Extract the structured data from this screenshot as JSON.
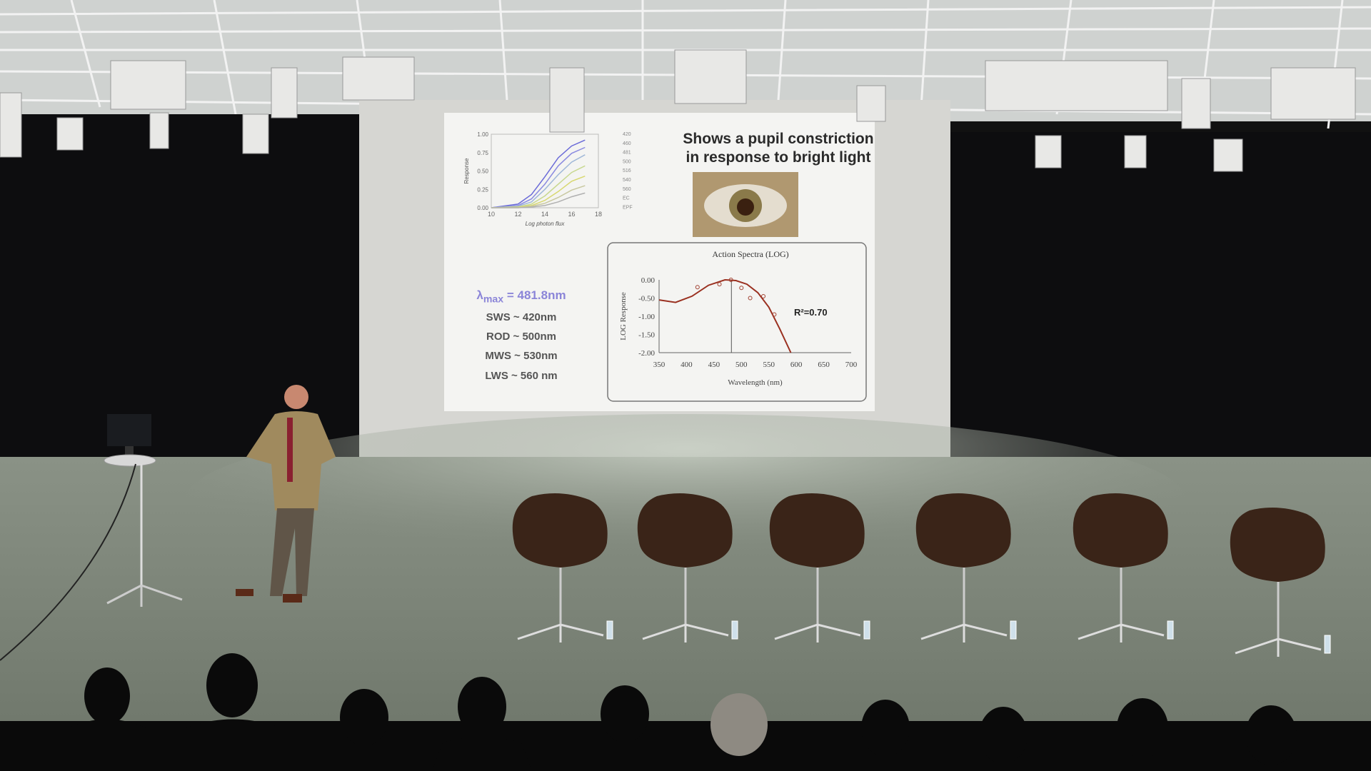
{
  "slide": {
    "title_line1": "Shows a pupil constriction",
    "title_line2": "in response to bright light",
    "lambda_symbol": "λ",
    "lambda_sub": "max",
    "lambda_value": " = 481.8nm",
    "receptors": [
      "SWS ~ 420nm",
      "ROD ~ 500nm",
      "MWS ~ 530nm",
      "LWS ~ 560 nm"
    ],
    "r_squared": "R²=0.70"
  },
  "chart_data": [
    {
      "type": "line",
      "xlabel": "Log photon flux",
      "ylabel": "Response",
      "x_ticks": [
        "10",
        "12",
        "14",
        "16",
        "18"
      ],
      "y_ticks": [
        "0.00",
        "0.25",
        "0.50",
        "0.75",
        "1.00"
      ],
      "xlim": [
        10,
        18
      ],
      "ylim": [
        0,
        1
      ],
      "legend_placement": "right",
      "legend": [
        "420",
        "460",
        "481",
        "500",
        "516",
        "540",
        "560",
        "EC",
        "EPF"
      ],
      "series": [
        {
          "name": "420",
          "color": "#6a6ad8",
          "x": [
            10,
            12,
            13,
            14,
            15,
            16,
            17
          ],
          "values": [
            0.0,
            0.05,
            0.18,
            0.42,
            0.68,
            0.84,
            0.92
          ]
        },
        {
          "name": "460",
          "color": "#8a8ae0",
          "x": [
            10,
            12,
            13,
            14,
            15,
            16,
            17
          ],
          "values": [
            0.0,
            0.03,
            0.12,
            0.32,
            0.57,
            0.74,
            0.82
          ]
        },
        {
          "name": "481",
          "color": "#a0b8d8",
          "x": [
            10,
            12,
            13,
            14,
            15,
            16,
            17
          ],
          "values": [
            0.0,
            0.02,
            0.08,
            0.25,
            0.45,
            0.62,
            0.72
          ]
        },
        {
          "name": "500",
          "color": "#c8d890",
          "x": [
            10,
            12,
            13,
            14,
            15,
            16,
            17
          ],
          "values": [
            0.0,
            0.01,
            0.05,
            0.16,
            0.32,
            0.48,
            0.57
          ]
        },
        {
          "name": "516",
          "color": "#d8d870",
          "x": [
            10,
            12,
            13,
            14,
            15,
            16,
            17
          ],
          "values": [
            0.0,
            0.01,
            0.03,
            0.1,
            0.22,
            0.36,
            0.43
          ]
        },
        {
          "name": "540",
          "color": "#c8c8a0",
          "x": [
            10,
            12,
            13,
            14,
            15,
            16,
            17
          ],
          "values": [
            0.0,
            0.0,
            0.02,
            0.06,
            0.14,
            0.24,
            0.3
          ]
        },
        {
          "name": "560",
          "color": "#b0b0b0",
          "x": [
            10,
            12,
            13,
            14,
            15,
            16,
            17
          ],
          "values": [
            0.0,
            0.0,
            0.01,
            0.03,
            0.08,
            0.15,
            0.2
          ]
        }
      ]
    },
    {
      "type": "scatter",
      "title": "Action Spectra (LOG)",
      "xlabel": "Wavelength (nm)",
      "ylabel": "LOG Response",
      "x_ticks": [
        "350",
        "400",
        "450",
        "500",
        "550",
        "600",
        "650",
        "700"
      ],
      "y_ticks": [
        "0.00",
        "-0.50",
        "-1.00",
        "-1.50",
        "-2.00"
      ],
      "xlim": [
        350,
        700
      ],
      "ylim": [
        -2,
        0
      ],
      "marker_line_x": 481.8,
      "points": {
        "x": [
          420,
          460,
          481,
          500,
          516,
          540,
          560
        ],
        "y": [
          -0.2,
          -0.12,
          0.0,
          -0.22,
          -0.5,
          -0.45,
          -0.95
        ]
      },
      "fit": {
        "x": [
          350,
          380,
          410,
          440,
          470,
          490,
          510,
          530,
          550,
          570,
          590
        ],
        "y": [
          -0.55,
          -0.62,
          -0.45,
          -0.15,
          0.0,
          -0.02,
          -0.12,
          -0.35,
          -0.75,
          -1.35,
          -2.0
        ]
      }
    }
  ]
}
